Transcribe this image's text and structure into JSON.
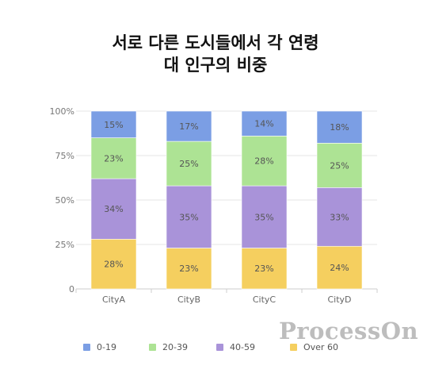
{
  "chart_data": {
    "type": "bar",
    "stacked": true,
    "title_lines": [
      "서로 다른 도시들에서 각 연령",
      "대 인구의 비중"
    ],
    "categories": [
      "CityA",
      "CityB",
      "CityC",
      "CityD"
    ],
    "series": [
      {
        "name": "0-19",
        "color": "#7b9ee4",
        "values": [
          15,
          17,
          14,
          18
        ]
      },
      {
        "name": "20-39",
        "color": "#ade394",
        "values": [
          23,
          25,
          28,
          25
        ]
      },
      {
        "name": "40-59",
        "color": "#a993d9",
        "values": [
          34,
          35,
          35,
          33
        ]
      },
      {
        "name": "Over 60",
        "color": "#f5cf5f",
        "values": [
          28,
          23,
          23,
          24
        ]
      }
    ],
    "data_labels": [
      [
        "15%",
        "17%",
        "14%",
        "18%"
      ],
      [
        "23%",
        "25%",
        "28%",
        "25%"
      ],
      [
        "34%",
        "35%",
        "35%",
        "33%"
      ],
      [
        "28%",
        "23%",
        "23%",
        "24%"
      ]
    ],
    "yticks": [
      "0",
      "25%",
      "50%",
      "75%",
      "100%"
    ],
    "ylim": [
      0,
      100
    ],
    "xlabel": "",
    "ylabel": "",
    "legend_position": "bottom",
    "grid": true
  },
  "watermark": "ProcessOn"
}
